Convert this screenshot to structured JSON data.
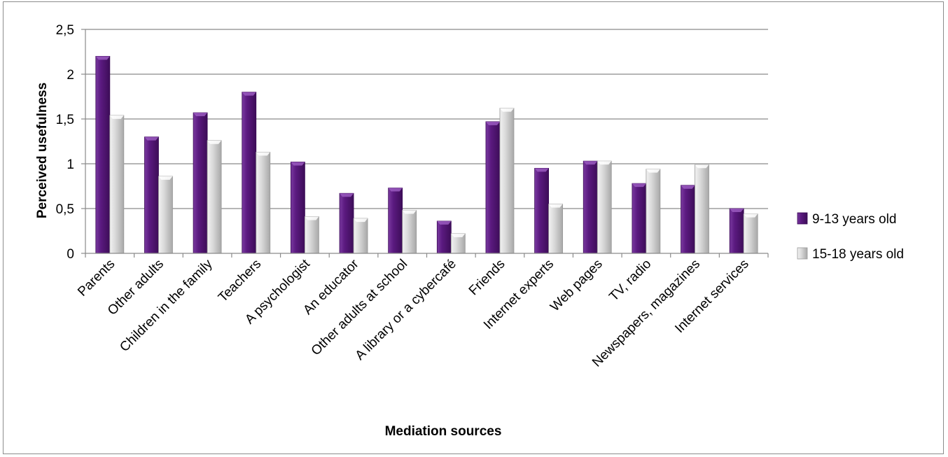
{
  "chart_data": {
    "type": "bar",
    "title": "",
    "xlabel": "Mediation sources",
    "ylabel": "Perceived usefulness",
    "ylim": [
      0,
      2.5
    ],
    "yticks": [
      "0",
      "0,5",
      "1",
      "1,5",
      "2",
      "2,5"
    ],
    "ytick_values": [
      0,
      0.5,
      1,
      1.5,
      2,
      2.5
    ],
    "grid": true,
    "legend_position": "right",
    "categories": [
      "Parents",
      "Other adults",
      "Children in the family",
      "Teachers",
      "A psychologist",
      "An educator",
      "Other adults at school",
      "A library or a cybercafé",
      "Friends",
      "Internet experts",
      "Web pages",
      "TV, radio",
      "Newspapers, magazines",
      "Internet services"
    ],
    "series": [
      {
        "name": "9-13 years old",
        "color": "#5b1a80",
        "values": [
          2.2,
          1.3,
          1.57,
          1.8,
          1.02,
          0.67,
          0.73,
          0.36,
          1.47,
          0.95,
          1.03,
          0.78,
          0.76,
          0.5
        ]
      },
      {
        "name": "15-18 years old",
        "color": "#d4d4d4",
        "values": [
          1.54,
          0.86,
          1.26,
          1.13,
          0.41,
          0.39,
          0.48,
          0.22,
          1.62,
          0.55,
          1.03,
          0.94,
          0.99,
          0.44
        ]
      }
    ]
  }
}
